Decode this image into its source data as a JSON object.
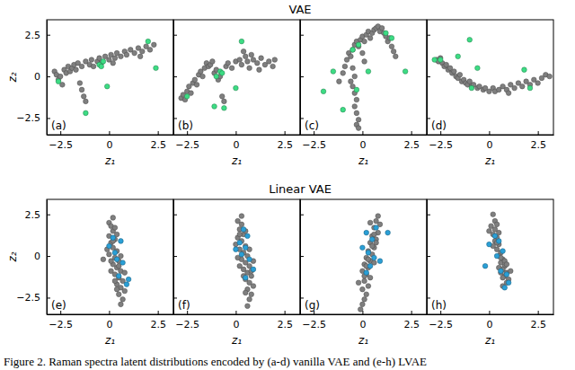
{
  "row_titles": [
    "VAE",
    "Linear VAE"
  ],
  "caption": "Figure 2. Raman spectra latent distributions encoded by (a-d) vanilla VAE and (e-h) LVAE",
  "chart_data": [
    {
      "type": "scatter",
      "annotation": "(a)",
      "xlabel": "z₁",
      "ylabel": "z₂",
      "xlim": [
        -3.2,
        3.3
      ],
      "ylim": [
        -3.5,
        3.4
      ],
      "xticks": [
        {
          "value": -2.5,
          "label": "−2.5"
        },
        0,
        2.5
      ],
      "yticks": [
        {
          "value": -2.5,
          "label": "−2.5"
        },
        0,
        2.5
      ],
      "series": [
        {
          "color": "#7f7f7f",
          "x": [
            -2.8,
            -2.7,
            -2.6,
            -2.5,
            -2.4,
            -2.3,
            -2.2,
            -2.1,
            -2.0,
            -1.9,
            -1.8,
            -1.7,
            -1.6,
            -1.5,
            -1.4,
            -1.3,
            -1.2,
            -1.4,
            -1.2,
            -1.0,
            -0.9,
            -0.8,
            -0.6,
            -0.5,
            -0.4,
            -0.2,
            0.0,
            0.1,
            0.3,
            0.4,
            0.6,
            0.8,
            0.9,
            1.1,
            1.3,
            1.5,
            1.7,
            1.9,
            2.1,
            2.3,
            1.6,
            0.2
          ],
          "values": [
            0.3,
            0.1,
            -0.2,
            0.0,
            -0.5,
            0.4,
            0.2,
            0.6,
            0.3,
            0.5,
            0.7,
            0.4,
            0.8,
            -0.4,
            -0.8,
            -1.2,
            -1.5,
            0.6,
            0.9,
            0.7,
            1.0,
            0.6,
            0.9,
            1.1,
            0.8,
            1.2,
            1.0,
            1.3,
            1.1,
            1.4,
            1.2,
            1.5,
            1.3,
            1.6,
            1.4,
            1.7,
            1.5,
            1.8,
            1.6,
            1.9,
            1.2,
            0.8
          ]
        },
        {
          "color": "#3ddc84",
          "x": [
            -2.6,
            -1.2,
            -0.5,
            -0.3,
            -0.1,
            2.0,
            2.4,
            -0.4
          ],
          "values": [
            -0.3,
            -2.2,
            0.7,
            0.9,
            -0.6,
            2.1,
            0.5,
            0.6
          ]
        }
      ]
    },
    {
      "type": "scatter",
      "annotation": "(b)",
      "xlabel": "z₁",
      "tick_labels": "x",
      "xlim": [
        -3.2,
        3.3
      ],
      "ylim": [
        -3.5,
        3.4
      ],
      "xticks": [
        {
          "value": -2.5,
          "label": "−2.5"
        },
        0,
        2.5
      ],
      "yticks": [
        -2.5,
        0,
        2.5
      ],
      "series": [
        {
          "color": "#7f7f7f",
          "x": [
            -2.8,
            -2.7,
            -2.6,
            -2.5,
            -2.4,
            -2.3,
            -2.2,
            -2.1,
            -2.0,
            -1.9,
            -1.8,
            -1.7,
            -1.6,
            -1.5,
            -1.4,
            -1.3,
            -1.2,
            -1.1,
            -1.0,
            -0.9,
            -0.8,
            -0.7,
            -0.6,
            -0.5,
            -0.4,
            -0.2,
            0.0,
            0.2,
            0.3,
            0.5,
            0.6,
            0.8,
            0.9,
            1.1,
            1.3,
            1.5,
            1.7,
            1.9,
            2.0,
            0.4,
            0.7,
            1.2
          ],
          "values": [
            -1.3,
            -1.1,
            -1.4,
            -0.9,
            -0.6,
            -1.0,
            -0.4,
            -0.2,
            -0.5,
            0.1,
            0.3,
            0.0,
            0.5,
            0.8,
            0.6,
            0.7,
            0.9,
            0.2,
            0.4,
            -0.2,
            0.0,
            -1.2,
            -1.5,
            0.6,
            0.8,
            0.5,
            0.9,
            1.0,
            0.7,
            1.2,
            0.9,
            1.3,
            1.0,
            0.8,
            1.1,
            0.7,
            0.9,
            0.6,
            1.0,
            1.5,
            0.5,
            0.4
          ]
        },
        {
          "color": "#3ddc84",
          "x": [
            -2.5,
            -1.0,
            -0.8,
            -0.7,
            -1.1,
            0.0,
            0.3,
            -0.6
          ],
          "values": [
            -1.2,
            0.0,
            0.3,
            0.2,
            -1.8,
            -0.7,
            2.1,
            -1.9
          ]
        }
      ]
    },
    {
      "type": "scatter",
      "annotation": "(c)",
      "xlabel": "z₁",
      "tick_labels": "x",
      "xlim": [
        -3.2,
        3.3
      ],
      "ylim": [
        -3.5,
        3.4
      ],
      "xticks": [
        {
          "value": -2.5,
          "label": "−2.5"
        },
        0,
        2.5
      ],
      "yticks": [
        -2.5,
        0,
        2.5
      ],
      "series": [
        {
          "color": "#7f7f7f",
          "x": [
            -1.2,
            -1.0,
            -0.9,
            -0.8,
            -0.7,
            -0.6,
            -0.5,
            -0.4,
            -0.3,
            -0.2,
            -0.1,
            0.0,
            0.1,
            0.2,
            0.3,
            0.4,
            0.5,
            0.6,
            0.7,
            0.8,
            0.9,
            1.0,
            1.1,
            1.2,
            1.3,
            1.4,
            1.5,
            1.6,
            1.7,
            -0.5,
            -0.4,
            -0.5,
            -0.4,
            -0.3,
            -0.4,
            -0.3,
            -0.2,
            -0.3,
            -0.2,
            -0.6,
            0.1,
            0.0
          ],
          "values": [
            -0.3,
            0.2,
            0.6,
            1.0,
            1.4,
            1.2,
            1.6,
            1.9,
            2.1,
            1.8,
            2.2,
            2.4,
            2.1,
            2.5,
            2.7,
            2.3,
            2.6,
            2.8,
            2.9,
            3.0,
            2.7,
            2.9,
            2.6,
            2.4,
            2.1,
            2.3,
            1.8,
            1.5,
            1.2,
            0.5,
            0.0,
            -0.6,
            -1.0,
            -1.4,
            -1.8,
            -2.2,
            -2.6,
            -2.9,
            -3.1,
            -0.3,
            0.9,
            1.4
          ]
        },
        {
          "color": "#3ddc84",
          "x": [
            -2.0,
            -1.5,
            -0.5,
            -0.2,
            -0.3,
            0.3,
            1.2,
            1.5,
            2.2,
            -1.0
          ],
          "values": [
            -0.9,
            0.3,
            1.6,
            1.9,
            -0.8,
            0.3,
            2.6,
            2.3,
            0.3,
            -2.0
          ]
        }
      ]
    },
    {
      "type": "scatter",
      "annotation": "(d)",
      "xlabel": "z₁",
      "tick_labels": "x",
      "xlim": [
        -3.2,
        3.3
      ],
      "ylim": [
        -3.5,
        3.4
      ],
      "xticks": [
        {
          "value": -2.5,
          "label": "−2.5"
        },
        0,
        2.5
      ],
      "yticks": [
        -2.5,
        0,
        2.5
      ],
      "series": [
        {
          "color": "#7f7f7f",
          "x": [
            -2.7,
            -2.6,
            -2.5,
            -2.4,
            -2.3,
            -2.2,
            -2.1,
            -2.0,
            -1.9,
            -1.8,
            -1.7,
            -1.6,
            -1.5,
            -1.4,
            -1.3,
            -1.2,
            -1.1,
            -1.0,
            -0.9,
            -0.8,
            -0.6,
            -0.5,
            -0.3,
            -0.2,
            0.0,
            0.2,
            0.3,
            0.5,
            0.7,
            0.9,
            1.1,
            1.3,
            1.5,
            1.7,
            1.9,
            2.1,
            2.3,
            2.5,
            2.7,
            2.9,
            3.1,
            1.0
          ],
          "values": [
            1.0,
            0.9,
            1.1,
            0.8,
            0.6,
            0.7,
            0.4,
            0.5,
            0.2,
            0.3,
            0.0,
            -0.1,
            0.1,
            -0.3,
            -0.2,
            -0.4,
            -0.5,
            -0.3,
            -0.6,
            -0.5,
            -0.7,
            -0.6,
            -0.8,
            -0.7,
            -0.9,
            -0.7,
            -0.9,
            -0.8,
            -0.6,
            -0.8,
            -0.5,
            -0.7,
            -0.4,
            -0.6,
            -0.3,
            -0.5,
            -0.2,
            -0.4,
            -0.1,
            0.1,
            0.0,
            -1.0
          ]
        },
        {
          "color": "#3ddc84",
          "x": [
            -2.8,
            -2.5,
            -1.0,
            -0.9,
            -0.6,
            1.8,
            2.1,
            -1.6
          ],
          "values": [
            1.0,
            1.0,
            2.2,
            -0.7,
            0.5,
            0.4,
            -0.7,
            1.2
          ]
        }
      ]
    },
    {
      "type": "scatter",
      "annotation": "(e)",
      "xlabel": "z₁",
      "ylabel": "z₂",
      "xlim": [
        -3.2,
        3.3
      ],
      "ylim": [
        -3.5,
        3.4
      ],
      "xticks": [
        {
          "value": -2.5,
          "label": "−2.5"
        },
        0,
        2.5
      ],
      "yticks": [
        {
          "value": -2.5,
          "label": "−2.5"
        },
        0,
        2.5
      ],
      "series": [
        {
          "color": "#7f7f7f",
          "x": [
            0.0,
            0.1,
            0.2,
            0.0,
            0.3,
            0.1,
            0.2,
            0.4,
            0.0,
            0.3,
            0.5,
            0.2,
            0.4,
            0.6,
            0.3,
            0.5,
            0.7,
            0.4,
            0.6,
            0.8,
            0.5,
            0.7,
            0.6,
            -0.1,
            -0.3,
            0.1,
            0.2,
            0.4,
            0.6,
            0.3,
            0.5,
            0.2,
            0.8,
            0.1,
            0.4,
            0.3
          ],
          "values": [
            2.0,
            1.8,
            1.5,
            1.2,
            1.0,
            0.8,
            0.5,
            0.3,
            0.1,
            -0.1,
            -0.3,
            -0.5,
            -0.7,
            -0.9,
            -1.1,
            -1.3,
            -1.5,
            -1.7,
            -1.9,
            -2.1,
            -2.3,
            -2.6,
            -2.9,
            0.4,
            -0.2,
            -0.3,
            0.9,
            1.3,
            0.0,
            -1.5,
            -0.6,
            2.3,
            -1.0,
            -0.9,
            -2.0,
            1.7
          ]
        },
        {
          "color": "#2a9fd6",
          "x": [
            0.2,
            0.6,
            0.0,
            0.4,
            0.7,
            0.5,
            1.0,
            0.9,
            0.3
          ],
          "values": [
            1.1,
            0.9,
            0.6,
            -0.2,
            -0.4,
            -1.2,
            -1.4,
            -1.7,
            0.2
          ]
        }
      ]
    },
    {
      "type": "scatter",
      "annotation": "(f)",
      "xlabel": "z₁",
      "tick_labels": "x",
      "xlim": [
        -3.2,
        3.3
      ],
      "ylim": [
        -3.5,
        3.4
      ],
      "xticks": [
        {
          "value": -2.5,
          "label": "−2.5"
        },
        0,
        2.5
      ],
      "yticks": [
        -2.5,
        0,
        2.5
      ],
      "series": [
        {
          "color": "#7f7f7f",
          "x": [
            0.1,
            0.3,
            0.2,
            0.4,
            0.1,
            0.3,
            0.5,
            0.2,
            0.4,
            0.6,
            0.3,
            0.5,
            0.7,
            0.4,
            0.6,
            0.8,
            0.5,
            0.7,
            0.9,
            0.6,
            0.8,
            0.7,
            0.6,
            0.0,
            0.2,
            0.5,
            0.3,
            0.9,
            0.4,
            0.2,
            0.7,
            0.5,
            0.1,
            0.8
          ],
          "values": [
            2.1,
            1.9,
            1.6,
            1.3,
            1.1,
            0.9,
            0.6,
            0.4,
            0.2,
            0.0,
            -0.2,
            -0.4,
            -0.6,
            -0.8,
            -1.0,
            -1.2,
            -1.4,
            -1.6,
            -1.8,
            -2.0,
            -2.3,
            -2.6,
            -3.0,
            0.7,
            -0.6,
            1.5,
            2.4,
            -0.3,
            -1.2,
            1.3,
            0.4,
            -2.2,
            -0.1,
            -0.9
          ]
        },
        {
          "color": "#2a9fd6",
          "x": [
            0.4,
            0.6,
            0.2,
            0.5,
            0.0,
            0.3,
            0.7,
            0.9,
            0.5
          ],
          "values": [
            1.6,
            1.2,
            0.8,
            0.5,
            0.4,
            0.1,
            -0.2,
            -0.8,
            -1.3
          ]
        }
      ]
    },
    {
      "type": "scatter",
      "annotation": "(g)",
      "xlabel": "z₁",
      "tick_labels": "x",
      "xlim": [
        -3.2,
        3.3
      ],
      "ylim": [
        -3.5,
        3.4
      ],
      "xticks": [
        {
          "value": -2.5,
          "label": "−2.5"
        },
        0,
        2.5
      ],
      "yticks": [
        -2.5,
        0,
        2.5
      ],
      "series": [
        {
          "color": "#7f7f7f",
          "x": [
            0.8,
            0.7,
            0.9,
            0.6,
            0.8,
            0.5,
            0.7,
            0.4,
            0.6,
            0.3,
            0.5,
            0.2,
            0.4,
            0.1,
            0.3,
            0.0,
            0.2,
            0.4,
            0.1,
            0.3,
            0.0,
            0.2,
            0.1,
            0.0,
            -0.1,
            0.6,
            0.5,
            0.3,
            0.2,
            0.7,
            0.1,
            -0.2,
            0.4,
            0.6
          ],
          "values": [
            2.4,
            2.1,
            1.9,
            1.7,
            1.4,
            1.2,
            1.0,
            0.8,
            0.5,
            0.3,
            0.1,
            -0.1,
            -0.3,
            -0.5,
            -0.7,
            -0.9,
            -1.1,
            -1.3,
            -1.5,
            -1.8,
            -2.0,
            -2.3,
            -2.6,
            -2.9,
            -3.2,
            1.3,
            0.6,
            -0.2,
            -0.6,
            0.8,
            -1.2,
            -1.6,
            2.0,
            -0.4
          ]
        },
        {
          "color": "#2a9fd6",
          "x": [
            0.2,
            0.7,
            1.3,
            0.5,
            0.0,
            0.3,
            0.6,
            0.4,
            0.9,
            0.2
          ],
          "values": [
            1.4,
            1.7,
            1.4,
            1.0,
            0.5,
            0.2,
            -0.1,
            -0.6,
            -0.3,
            -1.0
          ]
        }
      ]
    },
    {
      "type": "scatter",
      "annotation": "(h)",
      "xlabel": "z₁",
      "tick_labels": "x",
      "xlim": [
        -3.2,
        3.3
      ],
      "ylim": [
        -3.5,
        3.4
      ],
      "xticks": [
        {
          "value": -2.5,
          "label": "−2.5"
        },
        0,
        2.5
      ],
      "yticks": [
        -2.5,
        0,
        2.5
      ],
      "series": [
        {
          "color": "#7f7f7f",
          "x": [
            0.1,
            0.3,
            0.2,
            0.4,
            0.3,
            0.5,
            0.4,
            0.6,
            0.5,
            0.7,
            0.6,
            0.8,
            0.7,
            0.9,
            0.8,
            1.0,
            0.9,
            0.7,
            0.3,
            0.0,
            0.2,
            0.6,
            0.4,
            0.8,
            0.5,
            0.9,
            0.6,
            0.2,
            1.1,
            0.7,
            0.4,
            0.5
          ],
          "values": [
            1.8,
            1.6,
            1.3,
            1.1,
            0.9,
            0.7,
            0.4,
            0.2,
            0.0,
            -0.2,
            -0.4,
            -0.6,
            -0.8,
            -1.0,
            -1.2,
            -1.4,
            -1.6,
            -1.8,
            2.1,
            1.5,
            2.5,
            -0.1,
            0.8,
            -0.3,
            -0.7,
            -0.5,
            -1.0,
            0.6,
            -0.9,
            -1.3,
            1.9,
            1.4
          ]
        },
        {
          "color": "#2a9fd6",
          "x": [
            0.3,
            0.5,
            0.0,
            0.7,
            0.4,
            -0.2,
            0.6,
            0.9,
            1.0,
            0.8
          ],
          "values": [
            1.2,
            0.9,
            0.7,
            0.3,
            0.0,
            -0.6,
            -0.9,
            -1.1,
            -1.6,
            -1.9
          ]
        }
      ]
    }
  ]
}
